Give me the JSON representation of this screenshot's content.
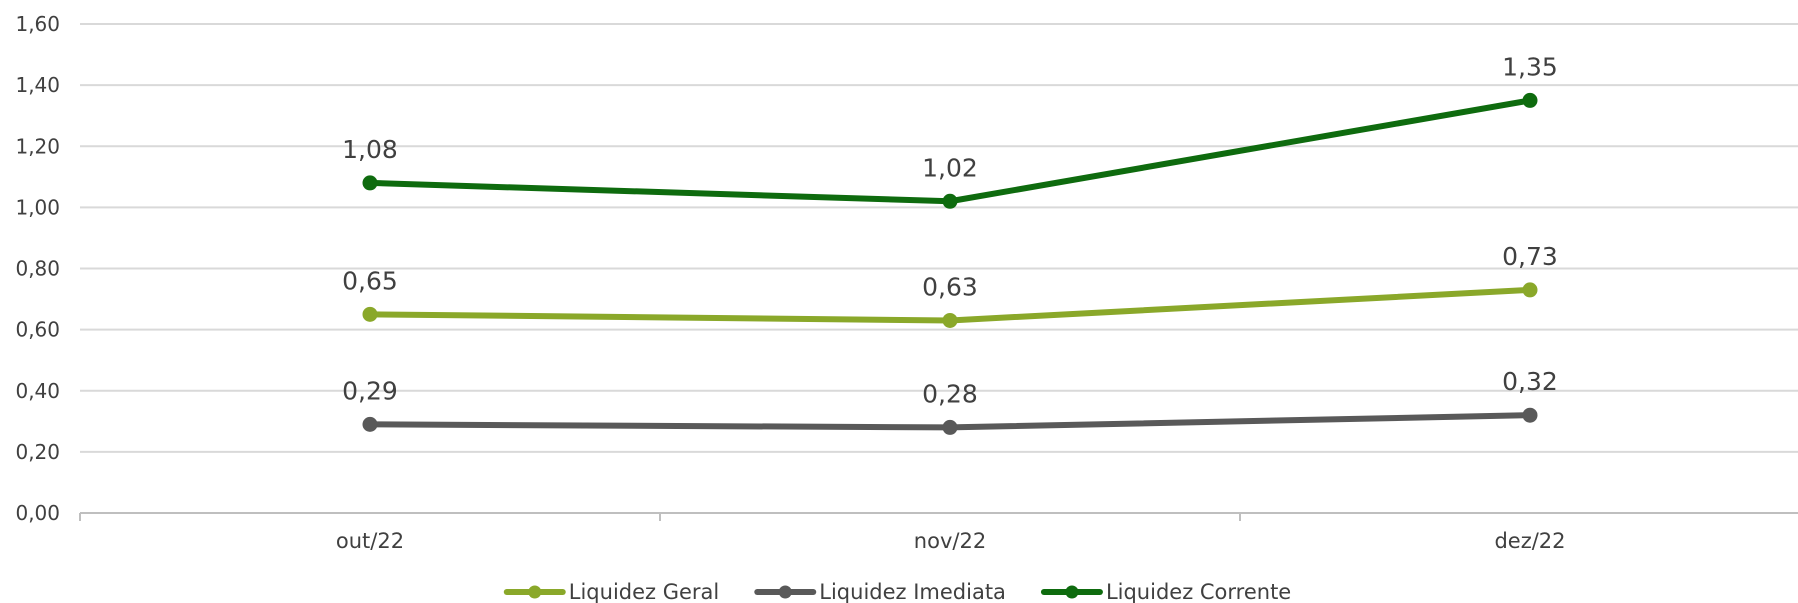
{
  "chart_data": {
    "type": "line",
    "title": "",
    "xlabel": "",
    "ylabel": "",
    "categories": [
      "out/22",
      "nov/22",
      "dez/22"
    ],
    "ylim": [
      0,
      1.6
    ],
    "yticks": [
      "0,00",
      "0,20",
      "0,40",
      "0,60",
      "0,80",
      "1,00",
      "1,20",
      "1,40",
      "1,60"
    ],
    "grid": true,
    "legend_position": "bottom",
    "series": [
      {
        "name": "Liquidez Geral",
        "color": "#8aa82a",
        "values": [
          0.65,
          0.63,
          0.73
        ],
        "labels": [
          "0,65",
          "0,63",
          "0,73"
        ]
      },
      {
        "name": "Liquidez  Imediata",
        "color": "#595959",
        "values": [
          0.29,
          0.28,
          0.32
        ],
        "labels": [
          "0,29",
          "0,28",
          "0,32"
        ]
      },
      {
        "name": "Liquidez Corrente",
        "color": "#0e6b0e",
        "values": [
          1.08,
          1.02,
          1.35
        ],
        "labels": [
          "1,08",
          "1,02",
          "1,35"
        ]
      }
    ]
  }
}
